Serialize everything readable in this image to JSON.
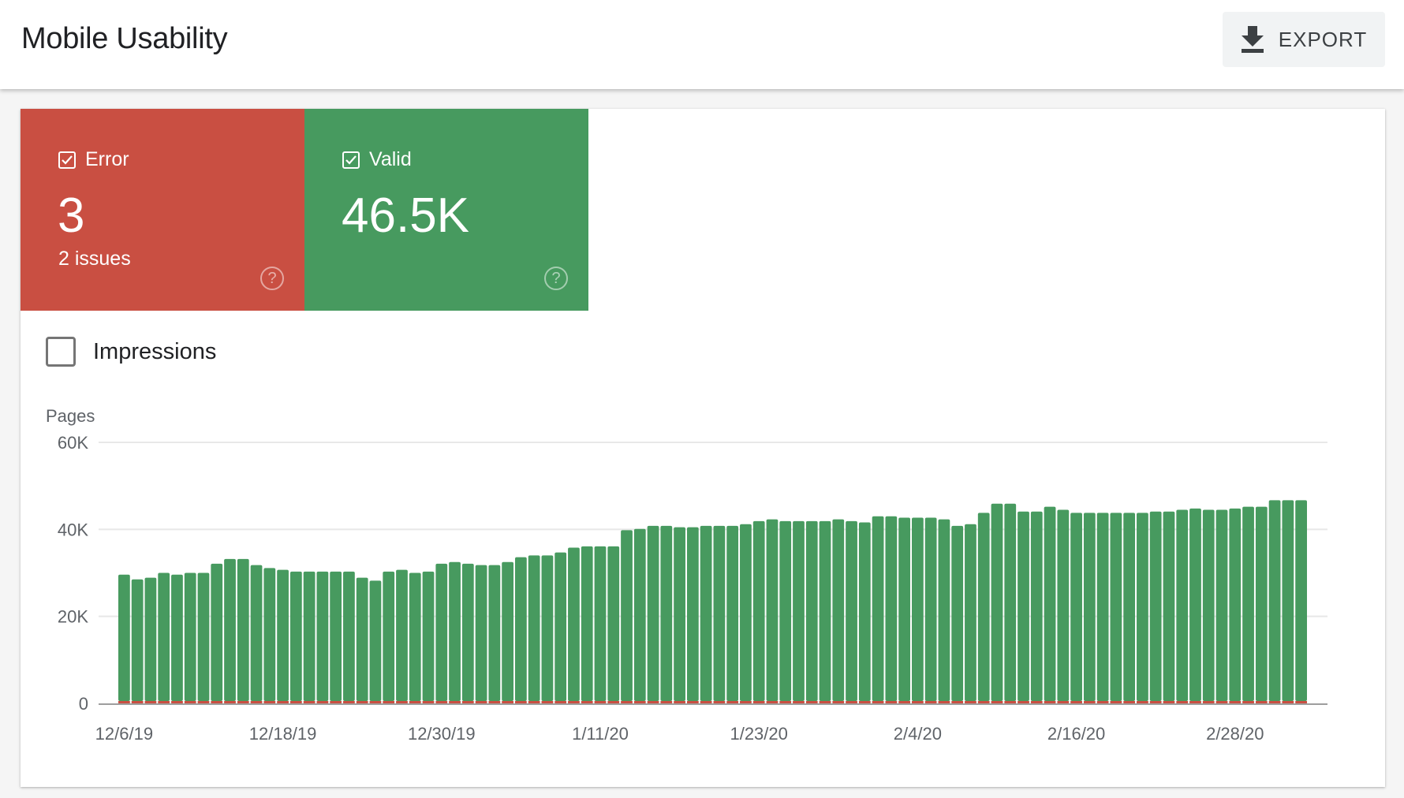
{
  "header": {
    "title": "Mobile Usability",
    "export_label": "EXPORT",
    "export_icon": "download-icon"
  },
  "tiles": {
    "error": {
      "label": "Error",
      "value": "3",
      "sub": "2 issues",
      "checked": true,
      "color": "#c94f42"
    },
    "valid": {
      "label": "Valid",
      "value": "46.5K",
      "checked": true,
      "color": "#479a5f"
    }
  },
  "impressions": {
    "label": "Impressions",
    "checked": false
  },
  "chart_data": {
    "type": "bar",
    "stacked": true,
    "ylabel": "Pages",
    "ylim": [
      0,
      60000
    ],
    "yticks": [
      "0",
      "20K",
      "40K",
      "60K"
    ],
    "yticks_values": [
      0,
      20000,
      40000,
      60000
    ],
    "grid": true,
    "xstart": "12/6/19",
    "xend": "3/4/20",
    "xtick_labels": [
      "12/6/19",
      "12/18/19",
      "12/30/19",
      "1/11/20",
      "1/23/20",
      "2/4/20",
      "2/16/20",
      "2/28/20"
    ],
    "series": [
      {
        "name": "Valid",
        "color": "#479a5f",
        "values": [
          29600,
          28500,
          28900,
          30000,
          29600,
          30000,
          30000,
          32100,
          33200,
          33200,
          31800,
          31100,
          30700,
          30300,
          30300,
          30300,
          30300,
          30300,
          28900,
          28200,
          30300,
          30700,
          30000,
          30300,
          32100,
          32500,
          32100,
          31800,
          31800,
          32500,
          33600,
          34000,
          34000,
          34700,
          35800,
          36100,
          36100,
          36100,
          39800,
          40100,
          40800,
          40800,
          40500,
          40500,
          40800,
          40800,
          40800,
          41200,
          41900,
          42300,
          41900,
          41900,
          41900,
          41900,
          42300,
          41900,
          41600,
          43000,
          43000,
          42700,
          42700,
          42700,
          42300,
          40800,
          41200,
          43800,
          45900,
          45900,
          44100,
          44100,
          45200,
          44500,
          43800,
          43800,
          43800,
          43800,
          43800,
          43800,
          44100,
          44100,
          44500,
          44800,
          44500,
          44500,
          44800,
          45200,
          45200,
          46700,
          46700,
          46700
        ]
      },
      {
        "name": "Error",
        "color": "#c94f42",
        "values_note_free": true,
        "value": 3
      }
    ]
  }
}
